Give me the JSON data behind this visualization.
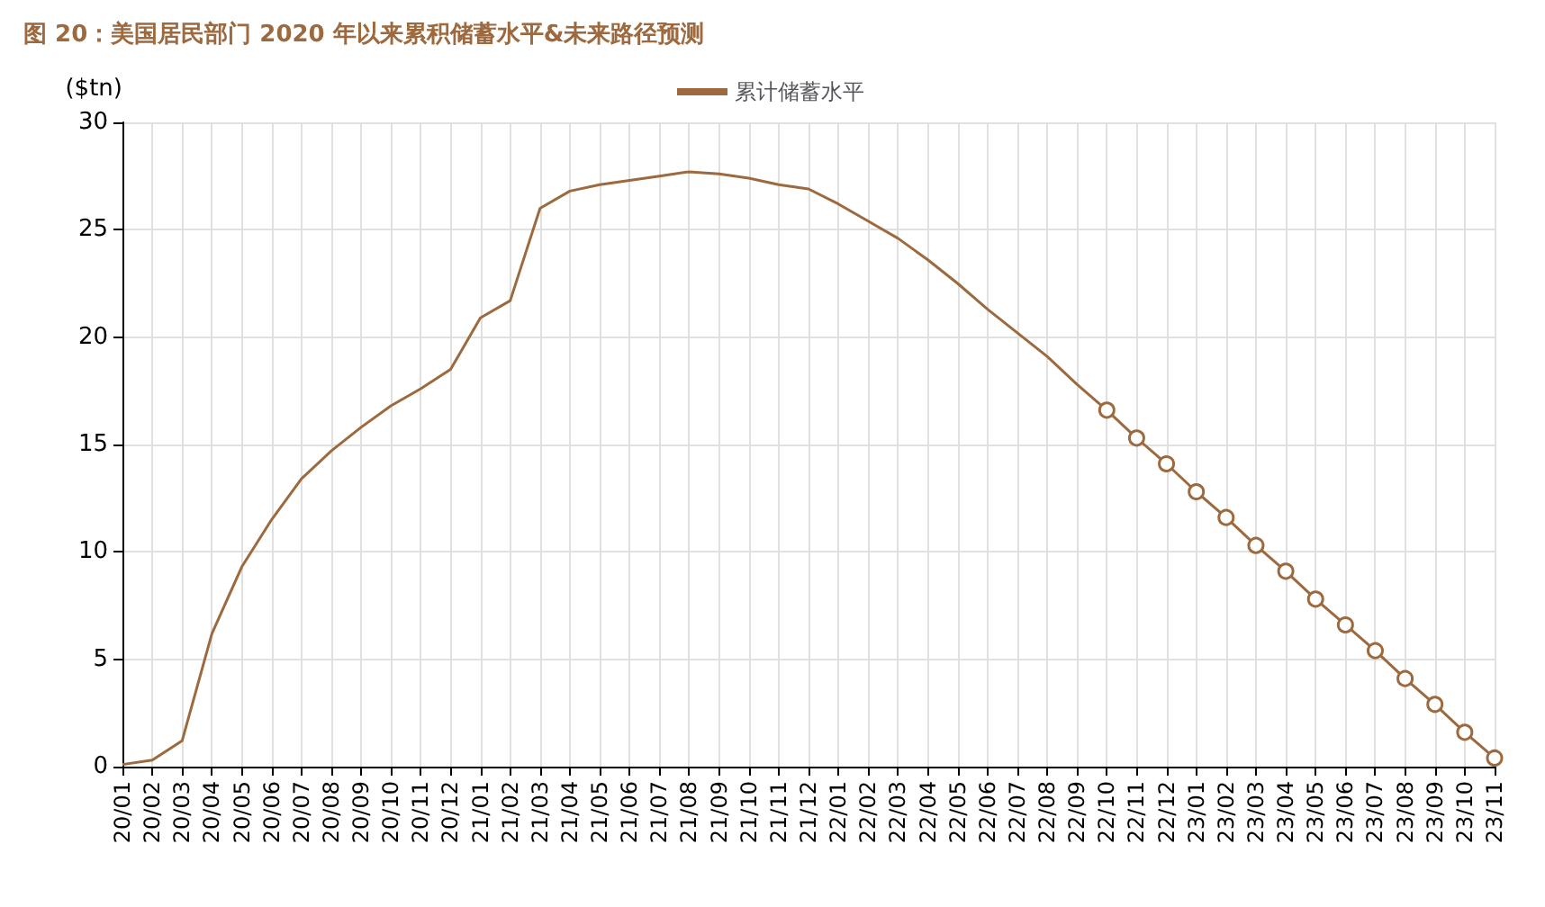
{
  "chart_data": {
    "type": "line",
    "title": "图 20：美国居民部门 2020 年以来累积储蓄水平&未来路径预测",
    "ylabel": "($tn)",
    "categories": [
      "20/01",
      "20/02",
      "20/03",
      "20/04",
      "20/05",
      "20/06",
      "20/07",
      "20/08",
      "20/09",
      "20/10",
      "20/11",
      "20/12",
      "21/01",
      "21/02",
      "21/03",
      "21/04",
      "21/05",
      "21/06",
      "21/07",
      "21/08",
      "21/09",
      "21/10",
      "21/11",
      "21/12",
      "22/01",
      "22/02",
      "22/03",
      "22/04",
      "22/05",
      "22/06",
      "22/07",
      "22/08",
      "22/09",
      "22/10",
      "22/11",
      "22/12",
      "23/01",
      "23/02",
      "23/03",
      "23/04",
      "23/05",
      "23/06",
      "23/07",
      "23/08",
      "23/09",
      "23/10",
      "23/11"
    ],
    "series": [
      {
        "name": "累计储蓄水平",
        "color": "#9c6a3e",
        "marker": "none",
        "values": [
          0.1,
          0.3,
          1.2,
          6.2,
          9.3,
          11.5,
          13.4,
          14.7,
          15.8,
          16.8,
          17.6,
          18.5,
          20.9,
          21.7,
          26.0,
          26.8,
          27.1,
          27.3,
          27.5,
          27.7,
          27.6,
          27.4,
          27.1,
          26.9,
          26.2,
          25.4,
          24.6,
          23.6,
          22.5,
          21.3,
          20.2,
          19.1,
          17.8,
          16.6,
          null,
          null,
          null,
          null,
          null,
          null,
          null,
          null,
          null,
          null,
          null,
          null,
          null
        ]
      },
      {
        "color": "#9c6a3e",
        "marker": "circle",
        "values": [
          null,
          null,
          null,
          null,
          null,
          null,
          null,
          null,
          null,
          null,
          null,
          null,
          null,
          null,
          null,
          null,
          null,
          null,
          null,
          null,
          null,
          null,
          null,
          null,
          null,
          null,
          null,
          null,
          null,
          null,
          null,
          null,
          null,
          16.6,
          15.3,
          14.1,
          12.8,
          11.6,
          10.3,
          9.1,
          7.8,
          6.6,
          5.4,
          4.1,
          2.9,
          1.6,
          0.4
        ]
      }
    ],
    "ylim": [
      0,
      30
    ],
    "yticks": [
      0,
      5,
      10,
      15,
      20,
      25,
      30
    ],
    "grid": true,
    "legend": "top"
  }
}
